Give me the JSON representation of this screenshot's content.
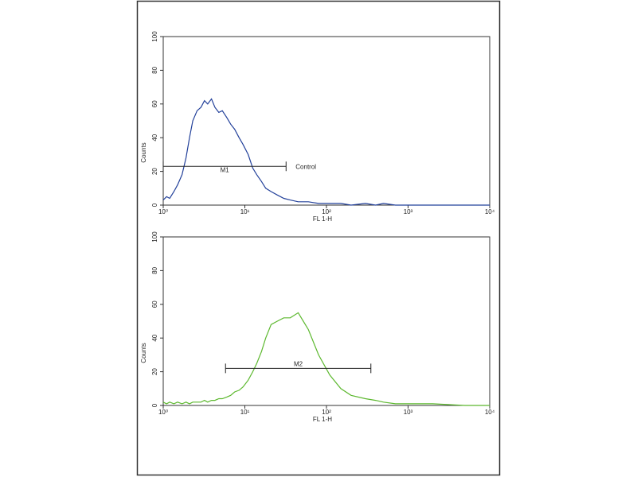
{
  "chart_data": [
    {
      "type": "line",
      "xlabel": "FL 1-H",
      "ylabel": "Counts",
      "xscale": "log",
      "xlim": [
        1,
        10000
      ],
      "xticks": [
        {
          "value": 1,
          "label": "10⁰"
        },
        {
          "value": 10,
          "label": "10¹"
        },
        {
          "value": 100,
          "label": "10²"
        },
        {
          "value": 1000,
          "label": "10³"
        },
        {
          "value": 10000,
          "label": "10⁴"
        }
      ],
      "ylim": [
        0,
        100
      ],
      "yticks": [
        0,
        20,
        40,
        60,
        80,
        100
      ],
      "x": [
        1,
        1.1,
        1.2,
        1.35,
        1.5,
        1.7,
        1.9,
        2.1,
        2.3,
        2.6,
        2.9,
        3.2,
        3.5,
        3.9,
        4.3,
        4.8,
        5.3,
        6,
        6.7,
        7.5,
        8.5,
        9.5,
        11,
        12.5,
        14,
        16,
        18,
        21,
        25,
        30,
        36,
        45,
        60,
        80,
        110,
        150,
        200,
        300,
        400,
        500,
        700,
        1000,
        2000,
        5000,
        10000
      ],
      "series": [
        {
          "color": "#22409a",
          "values": [
            3,
            5,
            4,
            8,
            12,
            18,
            28,
            40,
            50,
            56,
            58,
            62,
            60,
            63,
            58,
            55,
            56,
            52,
            48,
            45,
            40,
            36,
            30,
            22,
            18,
            14,
            10,
            8,
            6,
            4,
            3,
            2,
            2,
            1,
            1,
            1,
            0,
            1,
            0,
            1,
            0,
            0,
            0,
            0,
            0
          ]
        }
      ],
      "markers": [
        {
          "label": "M1",
          "x": [
            1,
            32
          ],
          "y": 23
        }
      ],
      "annotation": "Control"
    },
    {
      "type": "line",
      "xlabel": "FL 1-H",
      "ylabel": "Counts",
      "xscale": "log",
      "xlim": [
        1,
        10000
      ],
      "xticks": [
        {
          "value": 1,
          "label": "10⁰"
        },
        {
          "value": 10,
          "label": "10¹"
        },
        {
          "value": 100,
          "label": "10²"
        },
        {
          "value": 1000,
          "label": "10³"
        },
        {
          "value": 10000,
          "label": "10⁴"
        }
      ],
      "ylim": [
        0,
        100
      ],
      "yticks": [
        0,
        20,
        40,
        60,
        80,
        100
      ],
      "x": [
        1,
        1.1,
        1.2,
        1.35,
        1.5,
        1.7,
        1.9,
        2.1,
        2.3,
        2.6,
        2.9,
        3.2,
        3.5,
        3.9,
        4.3,
        4.8,
        5.3,
        6,
        6.7,
        7.5,
        8.5,
        9.5,
        11,
        12.5,
        14,
        16,
        18,
        21,
        25,
        30,
        36,
        45,
        60,
        80,
        110,
        150,
        200,
        300,
        400,
        500,
        700,
        1000,
        2000,
        5000,
        10000
      ],
      "series": [
        {
          "color": "#5cb82e",
          "values": [
            2,
            1,
            2,
            1,
            2,
            1,
            2,
            1,
            2,
            2,
            2,
            3,
            2,
            3,
            3,
            4,
            4,
            5,
            6,
            8,
            9,
            11,
            15,
            20,
            25,
            32,
            40,
            48,
            50,
            52,
            52,
            55,
            45,
            30,
            18,
            10,
            6,
            4,
            3,
            2,
            1,
            1,
            1,
            0,
            0
          ]
        }
      ],
      "markers": [
        {
          "label": "M2",
          "x": [
            5.8,
            350
          ],
          "y": 22
        }
      ]
    }
  ]
}
